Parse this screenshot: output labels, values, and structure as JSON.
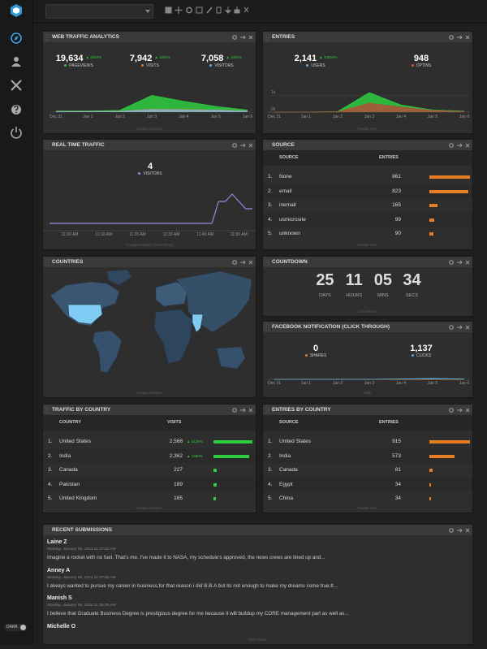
{
  "sidebar": {
    "toggle_label": "DARK"
  },
  "widgets": {
    "web_traffic": {
      "title": "WEB TRAFFIC ANALYTICS",
      "stats": [
        {
          "value": "19,634",
          "change": "▲ 2094%",
          "label": "PAGEVIEWS",
          "color": "#2ecc40"
        },
        {
          "value": "7,942",
          "change": "▲ 1052%",
          "label": "VISITS",
          "color": "#e67e22"
        },
        {
          "value": "7,058",
          "change": "▲ 1051%",
          "label": "VISITORS",
          "color": "#5dade2"
        }
      ],
      "chart": {
        "type": "area",
        "categories": [
          "Dec 31",
          "Jan 1",
          "Jan 2",
          "Jan 3",
          "Jan 4",
          "Jan 5",
          "Jan 6"
        ],
        "ylim": [
          0,
          10000
        ],
        "series": [
          {
            "color": "#2ecc40",
            "values": [
              500,
              500,
              800,
              7600,
              4900,
              2600,
              900
            ]
          },
          {
            "color": "#e67e22",
            "values": [
              250,
              250,
              350,
              1300,
              1150,
              950,
              420
            ]
          },
          {
            "color": "#7fb3d5",
            "values": [
              220,
              220,
              300,
              1150,
              1000,
              850,
              380
            ]
          }
        ]
      },
      "footer": "Google Analytics"
    },
    "entries": {
      "title": "ENTRIES",
      "stats": [
        {
          "value": "2,141",
          "change": "▲ 13550%",
          "label": "USERS",
          "color": "#5dade2"
        },
        {
          "value": "948",
          "label": "OPTINS",
          "color": "#e74c3c"
        }
      ],
      "chart": {
        "type": "area",
        "categories": [
          "Dec 31",
          "Jan 1",
          "Jan 2",
          "Jan 3",
          "Jan 4",
          "Jan 5",
          "Jan 6"
        ],
        "ylim": [
          0,
          1300
        ],
        "yticks": [
          {
            "value": 1000,
            "label": "1k"
          },
          {
            "value": 0,
            "label": "0k"
          }
        ],
        "grid": true,
        "series": [
          {
            "color": "#2ecc40",
            "values": [
              0,
              0,
              30,
              1150,
              420,
              120,
              50
            ]
          },
          {
            "color": "#b0503a",
            "values": [
              0,
              0,
              15,
              520,
              300,
              90,
              30
            ]
          }
        ]
      },
      "footer": "Private URL"
    },
    "real_time": {
      "title": "REAL TIME TRAFFIC",
      "stats": [
        {
          "value": "4",
          "label": "VISITORS",
          "color": "#9b84e0"
        }
      ],
      "chart": {
        "type": "line",
        "ylim": [
          0,
          6
        ],
        "categories": [
          null,
          null,
          null,
          "11:00 AM",
          null,
          null,
          null,
          null,
          "11:10 AM",
          null,
          null,
          null,
          null,
          "11:20 AM",
          null,
          null,
          null,
          null,
          "11:30 AM",
          null,
          null,
          null,
          null,
          "11:40 AM",
          null,
          null,
          null,
          null,
          "11:50 AM",
          null,
          null
        ],
        "series": [
          {
            "color": "#9b84e0",
            "values": [
              1,
              1,
              1,
              1,
              1,
              1,
              1,
              1,
              1,
              1,
              1,
              1,
              1,
              1,
              1,
              1,
              1,
              1,
              1,
              1,
              1,
              1,
              1,
              1,
              1,
              4,
              4,
              5,
              4,
              3,
              3
            ]
          }
        ]
      },
      "footer": "Google Analytics (Real Time)"
    },
    "source": {
      "title": "SOURCE",
      "columns": [
        "SOURCE",
        "ENTRIES"
      ],
      "bar_color": "#e67e22",
      "rows": [
        {
          "rank": "1.",
          "name": "None",
          "count": 861
        },
        {
          "rank": "2.",
          "name": "email",
          "count": 823
        },
        {
          "rank": "3.",
          "name": "inemail",
          "count": 165
        },
        {
          "rank": "4.",
          "name": "usmicrosite",
          "count": 99
        },
        {
          "rank": "5.",
          "name": "unknown",
          "count": 90
        }
      ],
      "footer": "Private URL"
    },
    "countries": {
      "title": "COUNTRIES",
      "footer": "Google Analytics"
    },
    "countdown": {
      "title": "COUNTDOWN",
      "units": [
        {
          "value": "25",
          "label": "DAYS"
        },
        {
          "value": "11",
          "label": "HOURS"
        },
        {
          "value": "05",
          "label": "MINS"
        },
        {
          "value": "34",
          "label": "SECS"
        }
      ],
      "footer": "Countdown"
    },
    "facebook": {
      "title": "FACEBOOK NOTIFICATION (CLICK THROUGH)",
      "stats": [
        {
          "value": "0",
          "label": "SHARES",
          "color": "#e67e22"
        },
        {
          "value": "1,137",
          "label": "CLICKS",
          "color": "#5dade2"
        }
      ],
      "chart": {
        "type": "area",
        "categories": [
          "Dec 31",
          "Jan 1",
          "Jan 2",
          "Jan 3",
          "Jan 4",
          "Jan 5",
          "Jan 6"
        ],
        "ylim": [
          0,
          1000
        ],
        "series": [
          {
            "color": "#e67e22",
            "values": [
              0,
              0,
              0,
              0,
              0,
              0,
              0
            ]
          },
          {
            "color": "#5dade2",
            "values": [
              0,
              0,
              0,
              0,
              40,
              70,
              30
            ]
          }
        ]
      },
      "footer": "Bitly"
    },
    "traffic_by_country": {
      "title": "TRAFFIC BY COUNTRY",
      "columns": [
        "COUNTRY",
        "VISITS"
      ],
      "bar_color": "#2ecc40",
      "rows": [
        {
          "rank": "1.",
          "name": "United States",
          "count": {
            "value": 2568,
            "label": "2,568"
          },
          "change": "▲ 5126%"
        },
        {
          "rank": "2.",
          "name": "India",
          "count": {
            "value": 2362,
            "label": "2,362"
          },
          "change": "▲ 1460%"
        },
        {
          "rank": "3.",
          "name": "Canada",
          "count": 227
        },
        {
          "rank": "4.",
          "name": "Pakistan",
          "count": 189
        },
        {
          "rank": "5.",
          "name": "United Kingdom",
          "count": 165
        }
      ],
      "footer": "Google Analytics"
    },
    "entries_by_country": {
      "title": "ENTRIES BY COUNTRY",
      "columns": [
        "SOURCE",
        "ENTRIES"
      ],
      "bar_color": "#e67e22",
      "rows": [
        {
          "rank": "1.",
          "name": "United States",
          "count": 915
        },
        {
          "rank": "2.",
          "name": "India",
          "count": 573
        },
        {
          "rank": "3.",
          "name": "Canada",
          "count": 81
        },
        {
          "rank": "4.",
          "name": "Egypt",
          "count": 34
        },
        {
          "rank": "5.",
          "name": "China",
          "count": 34
        }
      ],
      "footer": "Private URL"
    },
    "recent_submissions": {
      "title": "RECENT SUBMISSIONS",
      "items": [
        {
          "name": "Laine Z",
          "date": "Monday, January 06, 2014 11:37:32 AM",
          "text": "Imagine a rocket with no fuel. That's me. I've made it to NASA, my schedule's approved, the news crews are lined up and..."
        },
        {
          "name": "Anney A",
          "date": "Monday, January 06, 2014 11:37:00 AM",
          "text": "I always wanted to pursue my career in business,for that reason i did B.B.A but its not enough to make my dreams come true.It..."
        },
        {
          "name": "Manish S",
          "date": "Monday, January 06, 2014 11:36:39 AM",
          "text": "I believe that Graduate Business Degree is prestigious degree for me because it will buildup my CORE management part as well as..."
        },
        {
          "name": "Michelle O"
        }
      ],
      "footer": "RSS Feed"
    }
  }
}
